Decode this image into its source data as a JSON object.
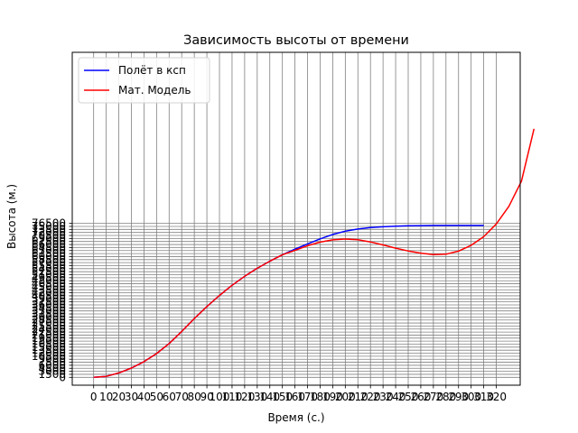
{
  "chart_data": {
    "type": "line",
    "title": "Зависимость высоты от времени",
    "xlabel": "Время (с.)",
    "ylabel": "Высота (м.)",
    "xlim": [
      -17,
      339
    ],
    "ylim": [
      -3900,
      161500
    ],
    "grid": true,
    "grid_color": "#808080",
    "legend_position": "top-left",
    "x_ticks": [
      0,
      10,
      20,
      30,
      40,
      50,
      60,
      70,
      80,
      90,
      100,
      110,
      120,
      130,
      140,
      150,
      160,
      170,
      180,
      190,
      200,
      210,
      220,
      230,
      240,
      250,
      260,
      270,
      280,
      290,
      300,
      310,
      320
    ],
    "x_tick_labels": [
      "0",
      "10",
      "20",
      "30",
      "40",
      "50",
      "60",
      "70",
      "80",
      "90",
      "100",
      "110",
      "120",
      "130",
      "140",
      "150",
      "160",
      "170",
      "180",
      "190",
      "200",
      "210",
      "220",
      "230",
      "240",
      "250",
      "260",
      "270",
      "280",
      "290",
      "300",
      "310",
      "320"
    ],
    "y_ticks": [
      0,
      1500,
      3000,
      4500,
      6000,
      7500,
      9000,
      10500,
      12000,
      13500,
      15000,
      16500,
      18000,
      19500,
      21000,
      22500,
      24000,
      25500,
      27000,
      28500,
      30000,
      31500,
      33000,
      34500,
      36000,
      37500,
      39000,
      40500,
      42000,
      43500,
      45000,
      46500,
      48000,
      49500,
      51000,
      52500,
      54000,
      55500,
      57000,
      58500,
      60000,
      61500,
      63000,
      64500,
      66000,
      67500,
      69000,
      70500,
      72000,
      73500,
      75000,
      76500
    ],
    "y_tick_labels": [
      "0",
      "1500",
      "3000",
      "4500",
      "6000",
      "7500",
      "9000",
      "10500",
      "12000",
      "13500",
      "15000",
      "16500",
      "18000",
      "19500",
      "21000",
      "22500",
      "24000",
      "25500",
      "27000",
      "28500",
      "30000",
      "31500",
      "33000",
      "34500",
      "36000",
      "37500",
      "39000",
      "40500",
      "42000",
      "43500",
      "45000",
      "46500",
      "48000",
      "49500",
      "51000",
      "52500",
      "54000",
      "55500",
      "57000",
      "58500",
      "60000",
      "61500",
      "63000",
      "64500",
      "66000",
      "67500",
      "69000",
      "70500",
      "72000",
      "73500",
      "75000",
      "76500"
    ],
    "series": [
      {
        "name": "Полёт в ксп",
        "color": "#0000ff",
        "x": [
          0,
          10,
          20,
          30,
          40,
          50,
          60,
          70,
          80,
          90,
          100,
          110,
          120,
          130,
          140,
          150,
          160,
          170,
          180,
          190,
          200,
          210,
          220,
          230,
          240,
          250,
          260,
          270,
          280,
          290,
          300,
          310
        ],
        "y": [
          0,
          500,
          2200,
          4600,
          7800,
          11800,
          16800,
          22800,
          29200,
          35200,
          40700,
          45700,
          50200,
          54200,
          57700,
          60900,
          63700,
          66300,
          68800,
          71000,
          72600,
          73700,
          74400,
          74800,
          75100,
          75300,
          75400,
          75500,
          75500,
          75500,
          75500,
          75500
        ]
      },
      {
        "name": "Мат. Модель",
        "color": "#ff0000",
        "x": [
          0,
          10,
          20,
          30,
          40,
          50,
          60,
          70,
          80,
          90,
          100,
          110,
          120,
          130,
          140,
          150,
          160,
          170,
          180,
          190,
          200,
          210,
          220,
          230,
          240,
          250,
          260,
          270,
          280,
          290,
          300,
          310,
          320,
          330,
          340,
          350
        ],
        "y": [
          0,
          500,
          2200,
          4600,
          7800,
          11800,
          16800,
          22800,
          29200,
          35200,
          40700,
          45700,
          50200,
          54200,
          57700,
          60900,
          63100,
          65400,
          67200,
          68300,
          68700,
          68400,
          67300,
          65800,
          64200,
          62800,
          61700,
          61000,
          61200,
          62700,
          65600,
          69900,
          76200,
          85000,
          97500,
          123500
        ]
      }
    ]
  }
}
